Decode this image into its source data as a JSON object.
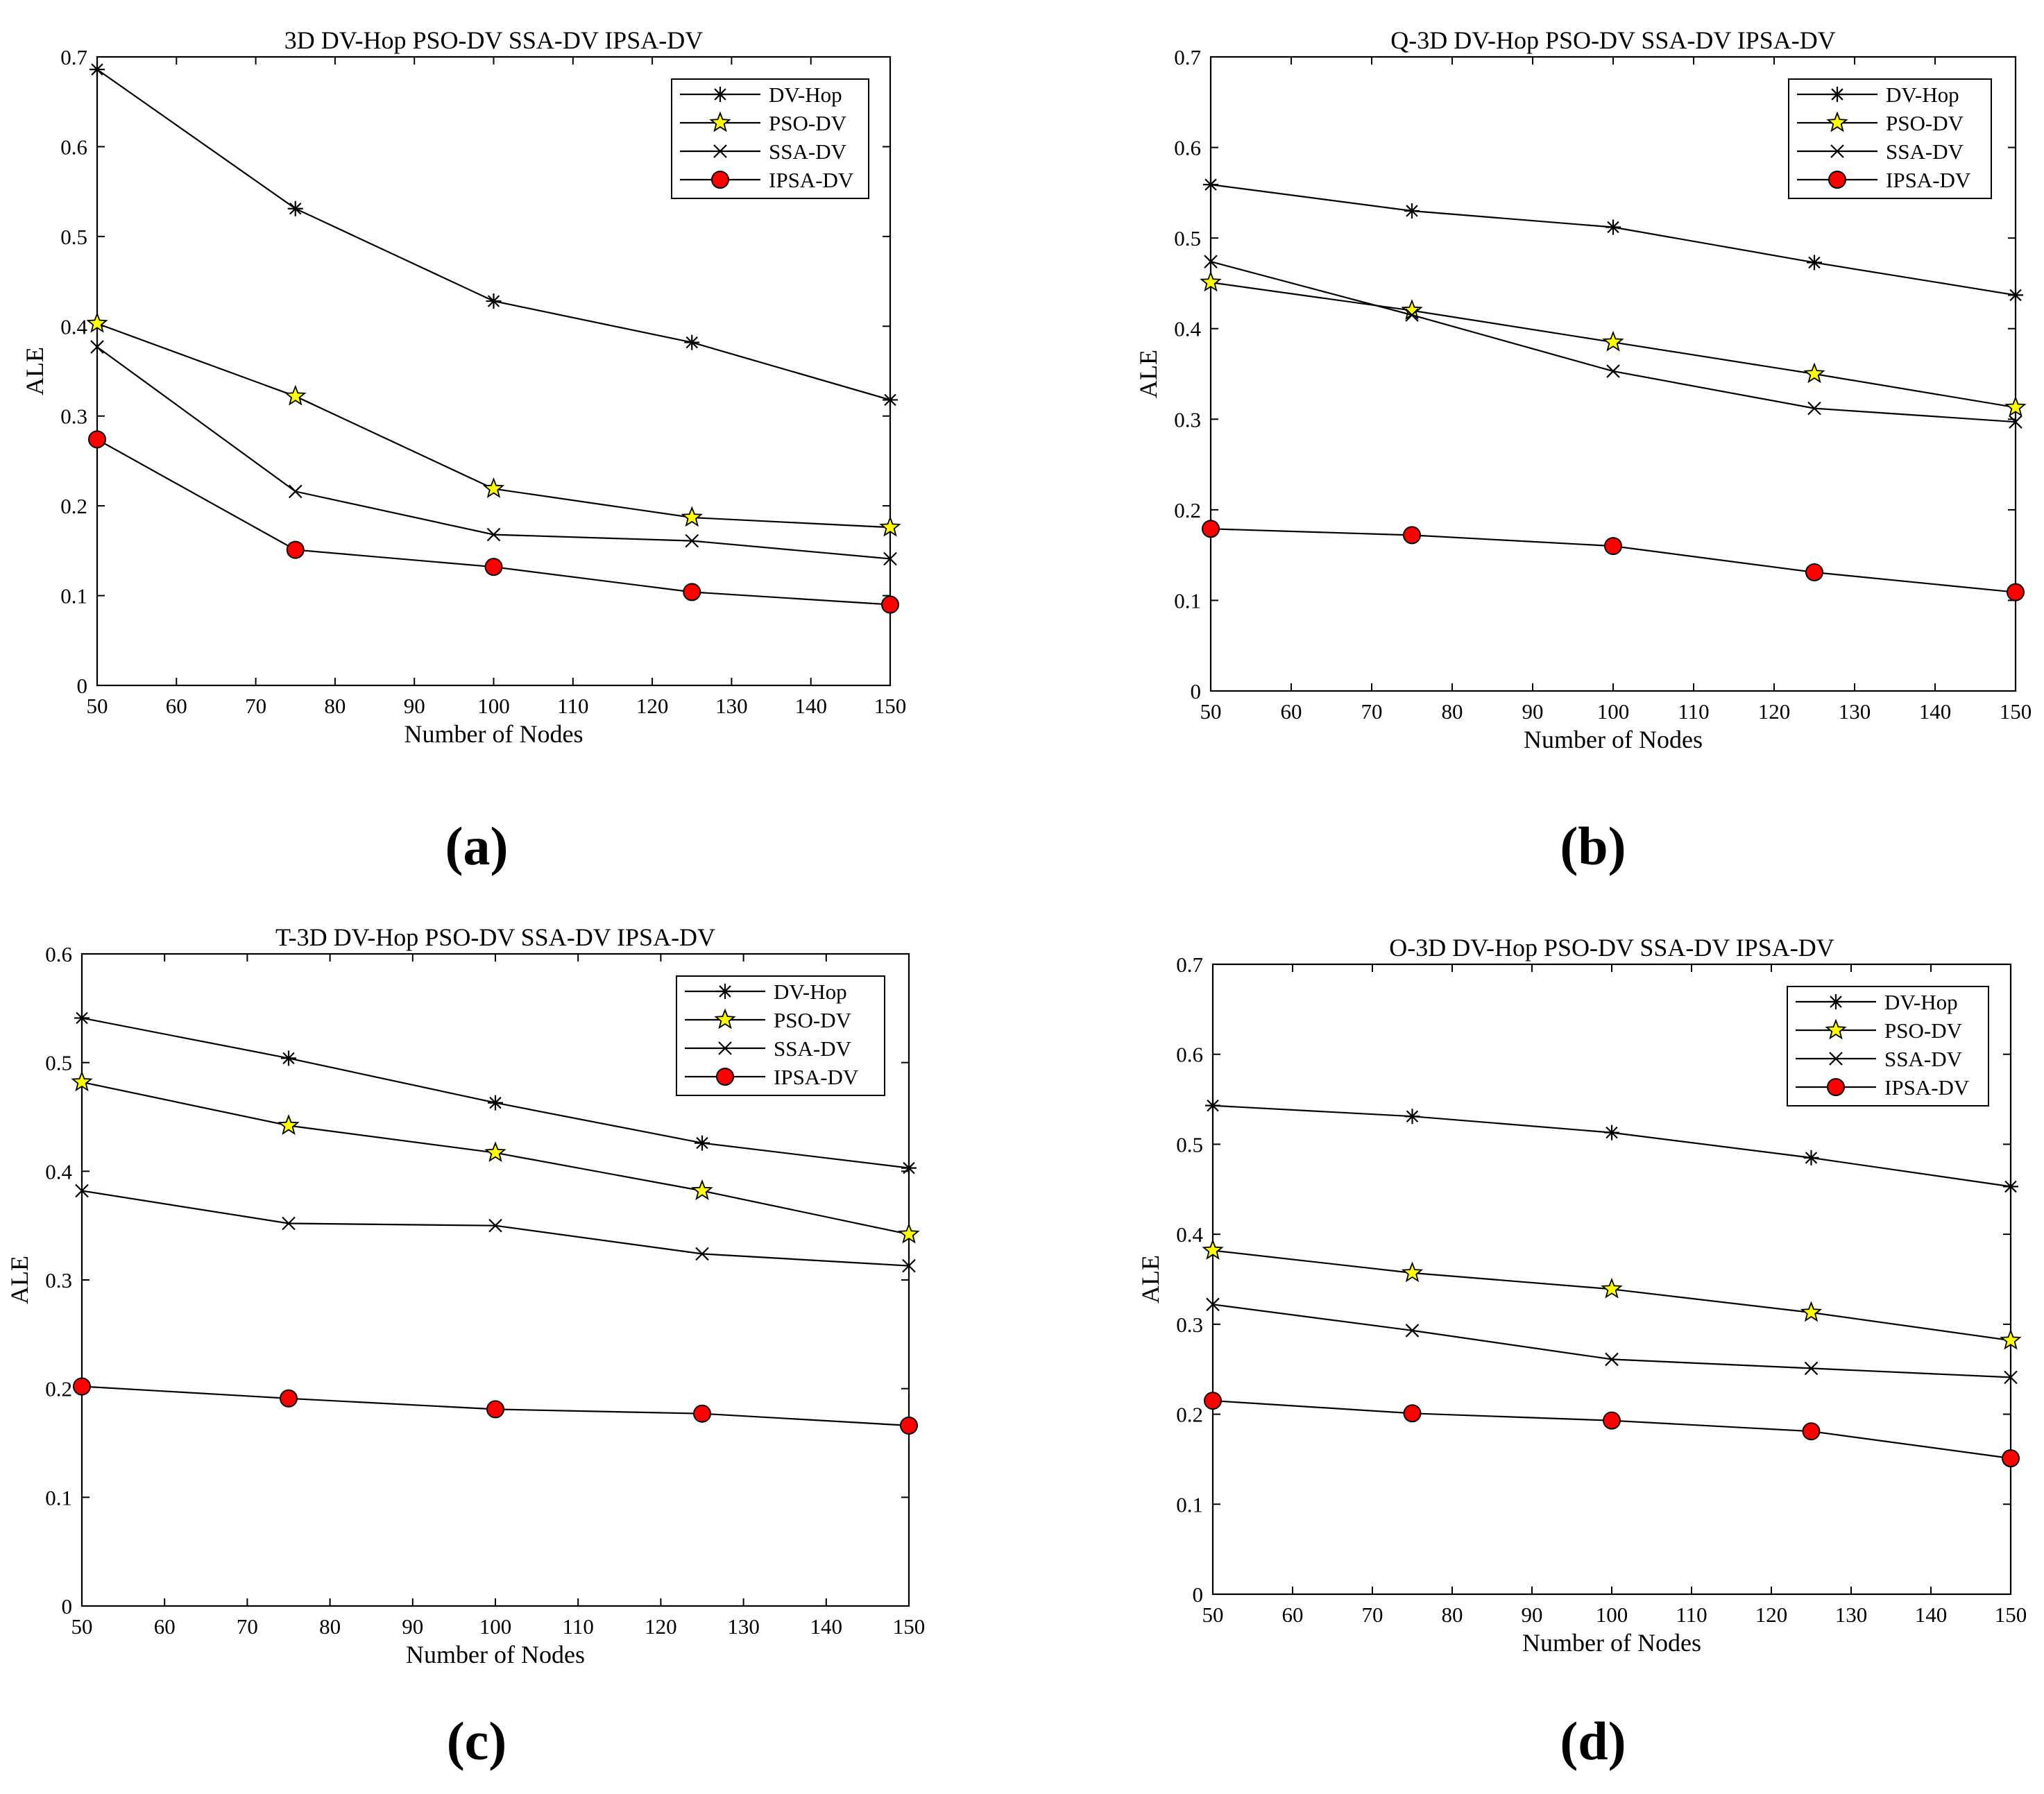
{
  "chart_data": [
    {
      "type": "line",
      "panel": "(a)",
      "title": "3D DV-Hop PSO-DV SSA-DV IPSA-DV",
      "xlabel": "Number of Nodes",
      "ylabel": "ALE",
      "xlim": [
        50,
        150
      ],
      "ylim": [
        0,
        0.7
      ],
      "xticks": [
        50,
        60,
        70,
        80,
        90,
        100,
        110,
        120,
        130,
        140,
        150
      ],
      "xtick_labels": [
        "50",
        "60",
        "70",
        "80",
        "90",
        "100",
        "110",
        "120",
        "130",
        "140",
        "150"
      ],
      "yticks": [
        0,
        0.1,
        0.2,
        0.3,
        0.4,
        0.5,
        0.6,
        0.7
      ],
      "ytick_labels": [
        "0",
        "0.1",
        "0.2",
        "0.3",
        "0.4",
        "0.5",
        "0.6",
        "0.7"
      ],
      "x": [
        50,
        75,
        100,
        125,
        150
      ],
      "legend_position": "top-right",
      "series": [
        {
          "name": "DV-Hop",
          "marker": "asterisk",
          "values": [
            0.686,
            0.531,
            0.428,
            0.382,
            0.318
          ]
        },
        {
          "name": "PSO-DV",
          "marker": "star",
          "values": [
            0.403,
            0.322,
            0.219,
            0.187,
            0.176
          ]
        },
        {
          "name": "SSA-DV",
          "marker": "x",
          "values": [
            0.377,
            0.216,
            0.168,
            0.161,
            0.141
          ]
        },
        {
          "name": "IPSA-DV",
          "marker": "circle",
          "values": [
            0.274,
            0.151,
            0.132,
            0.104,
            0.09
          ]
        }
      ]
    },
    {
      "type": "line",
      "panel": "(b)",
      "title": "Q-3D DV-Hop PSO-DV SSA-DV IPSA-DV",
      "xlabel": "Number of Nodes",
      "ylabel": "ALE",
      "xlim": [
        50,
        150
      ],
      "ylim": [
        0,
        0.7
      ],
      "xticks": [
        50,
        60,
        70,
        80,
        90,
        100,
        110,
        120,
        130,
        140,
        150
      ],
      "xtick_labels": [
        "50",
        "60",
        "70",
        "80",
        "90",
        "100",
        "110",
        "120",
        "130",
        "140",
        "150"
      ],
      "yticks": [
        0,
        0.1,
        0.2,
        0.3,
        0.4,
        0.5,
        0.6,
        0.7
      ],
      "ytick_labels": [
        "0",
        "0.1",
        "0.2",
        "0.3",
        "0.4",
        "0.5",
        "0.6",
        "0.7"
      ],
      "x": [
        50,
        75,
        100,
        125,
        150
      ],
      "legend_position": "top-right",
      "series": [
        {
          "name": "DV-Hop",
          "marker": "asterisk",
          "values": [
            0.559,
            0.53,
            0.512,
            0.473,
            0.437
          ]
        },
        {
          "name": "PSO-DV",
          "marker": "star",
          "values": [
            0.451,
            0.42,
            0.385,
            0.35,
            0.313
          ]
        },
        {
          "name": "SSA-DV",
          "marker": "x",
          "values": [
            0.474,
            0.415,
            0.353,
            0.312,
            0.297
          ]
        },
        {
          "name": "IPSA-DV",
          "marker": "circle",
          "values": [
            0.179,
            0.172,
            0.16,
            0.131,
            0.109
          ]
        }
      ]
    },
    {
      "type": "line",
      "panel": "(c)",
      "title": "T-3D DV-Hop PSO-DV SSA-DV IPSA-DV",
      "xlabel": "Number of Nodes",
      "ylabel": "ALE",
      "xlim": [
        50,
        150
      ],
      "ylim": [
        0,
        0.6
      ],
      "xticks": [
        50,
        60,
        70,
        80,
        90,
        100,
        110,
        120,
        130,
        140,
        150
      ],
      "xtick_labels": [
        "50",
        "60",
        "70",
        "80",
        "90",
        "100",
        "110",
        "120",
        "130",
        "140",
        "150"
      ],
      "yticks": [
        0,
        0.1,
        0.2,
        0.3,
        0.4,
        0.5,
        0.6
      ],
      "ytick_labels": [
        "0",
        "0.1",
        "0.2",
        "0.3",
        "0.4",
        "0.5",
        "0.6"
      ],
      "x": [
        50,
        75,
        100,
        125,
        150
      ],
      "legend_position": "top-right",
      "series": [
        {
          "name": "DV-Hop",
          "marker": "asterisk",
          "values": [
            0.541,
            0.504,
            0.463,
            0.426,
            0.403
          ]
        },
        {
          "name": "PSO-DV",
          "marker": "star",
          "values": [
            0.482,
            0.442,
            0.417,
            0.382,
            0.342
          ]
        },
        {
          "name": "SSA-DV",
          "marker": "x",
          "values": [
            0.382,
            0.352,
            0.35,
            0.324,
            0.313
          ]
        },
        {
          "name": "IPSA-DV",
          "marker": "circle",
          "values": [
            0.202,
            0.191,
            0.181,
            0.177,
            0.166
          ]
        }
      ]
    },
    {
      "type": "line",
      "panel": "(d)",
      "title": "O-3D DV-Hop PSO-DV SSA-DV IPSA-DV",
      "xlabel": "Number of Nodes",
      "ylabel": "ALE",
      "xlim": [
        50,
        150
      ],
      "ylim": [
        0,
        0.7
      ],
      "xticks": [
        50,
        60,
        70,
        80,
        90,
        100,
        110,
        120,
        130,
        140,
        150
      ],
      "xtick_labels": [
        "50",
        "60",
        "70",
        "80",
        "90",
        "100",
        "110",
        "120",
        "130",
        "140",
        "150"
      ],
      "yticks": [
        0,
        0.1,
        0.2,
        0.3,
        0.4,
        0.5,
        0.6,
        0.7
      ],
      "ytick_labels": [
        "0",
        "0.1",
        "0.2",
        "0.3",
        "0.4",
        "0.5",
        "0.6",
        "0.7"
      ],
      "x": [
        50,
        75,
        100,
        125,
        150
      ],
      "legend_position": "top-right",
      "series": [
        {
          "name": "DV-Hop",
          "marker": "asterisk",
          "values": [
            0.543,
            0.531,
            0.513,
            0.485,
            0.453
          ]
        },
        {
          "name": "PSO-DV",
          "marker": "star",
          "values": [
            0.382,
            0.357,
            0.339,
            0.313,
            0.282
          ]
        },
        {
          "name": "SSA-DV",
          "marker": "x",
          "values": [
            0.322,
            0.293,
            0.261,
            0.251,
            0.241
          ]
        },
        {
          "name": "IPSA-DV",
          "marker": "circle",
          "values": [
            0.215,
            0.201,
            0.193,
            0.181,
            0.151
          ]
        }
      ]
    }
  ],
  "colors": {
    "axis": "#000000",
    "line": "#000000",
    "star_fill": "#ffff00",
    "circle_fill": "#ff0000",
    "background": "#ffffff"
  }
}
